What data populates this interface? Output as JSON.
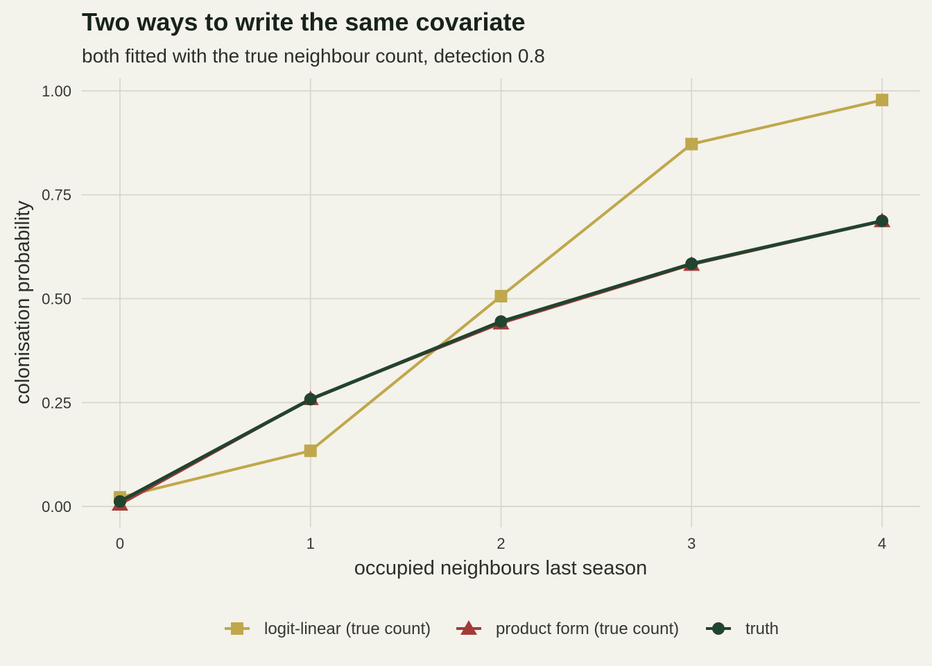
{
  "chart_data": {
    "type": "line",
    "title": "Two ways to write the same covariate",
    "subtitle": "both fitted with the true neighbour count, detection 0.8",
    "xlabel": "occupied neighbours last season",
    "ylabel": "colonisation probability",
    "x": [
      0,
      1,
      2,
      3,
      4
    ],
    "x_ticks": [
      "0",
      "1",
      "2",
      "3",
      "4"
    ],
    "y_ticks": [
      "0.00",
      "0.25",
      "0.50",
      "0.75",
      "1.00"
    ],
    "xlim": [
      -0.2,
      4.2
    ],
    "ylim": [
      -0.05,
      1.03
    ],
    "grid": true,
    "legend_position": "bottom",
    "series": [
      {
        "name": "logit-linear (true count)",
        "color": "#bfa74b",
        "marker": "square",
        "values": [
          0.022,
          0.134,
          0.506,
          0.872,
          0.978
        ]
      },
      {
        "name": "product form (true count)",
        "color": "#a33a3a",
        "marker": "triangle",
        "values": [
          0.005,
          0.259,
          0.441,
          0.582,
          0.687
        ]
      },
      {
        "name": "truth",
        "color": "#22432e",
        "marker": "circle",
        "values": [
          0.012,
          0.258,
          0.445,
          0.584,
          0.687
        ]
      }
    ]
  }
}
